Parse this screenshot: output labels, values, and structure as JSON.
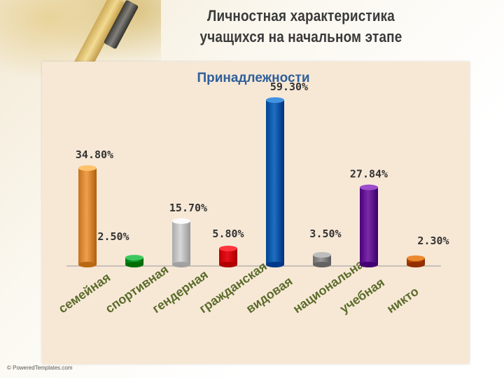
{
  "slide": {
    "title_line1": "Личностная характеристика",
    "title_line2": "учащихся на начальном этапе",
    "copyright": "© PoweredTemplates.com"
  },
  "chart_data": {
    "type": "bar",
    "title": "Принадлежности",
    "categories": [
      "семейная",
      "спортивная",
      "гендерная",
      "гражданская",
      "видовая",
      "национальная",
      "учебная",
      "никто"
    ],
    "values": [
      34.8,
      2.5,
      15.7,
      5.8,
      59.3,
      3.5,
      27.84,
      2.3
    ],
    "value_labels": [
      "34.80%",
      "2.50%",
      "15.70%",
      "5.80%",
      "59.30%",
      "3.50%",
      "27.84%",
      "2.30%"
    ],
    "colors": [
      "#f0a04b",
      "#1aa53c",
      "#d8d8d8",
      "#e8111b",
      "#1f6fc0",
      "#9a9a9a",
      "#7a2aa8",
      "#c9650a"
    ],
    "legend": "none",
    "grid": false
  }
}
